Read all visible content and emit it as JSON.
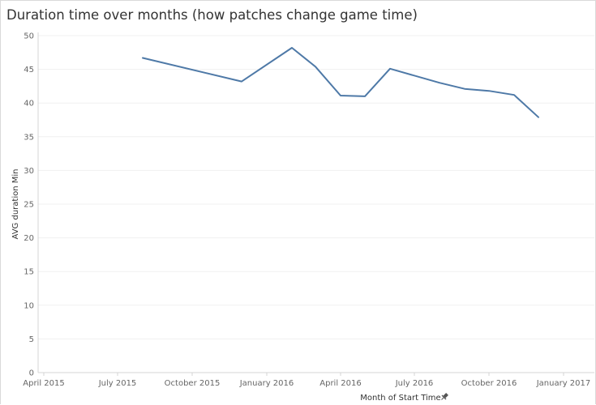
{
  "chart_data": {
    "type": "line",
    "title": "Duration time over months (how patches change game time)",
    "xlabel": "Month of Start Time",
    "ylabel": "AVG duration Min",
    "x_axis_marker": "pin-icon",
    "ylim": [
      0,
      50
    ],
    "yticks": [
      0,
      5,
      10,
      15,
      20,
      25,
      30,
      35,
      40,
      45,
      50
    ],
    "xlim": [
      "2015-03-25",
      "2017-02-08"
    ],
    "xticks": [
      {
        "date": "2015-04-01",
        "label": "April 2015"
      },
      {
        "date": "2015-07-01",
        "label": "July 2015"
      },
      {
        "date": "2015-10-01",
        "label": "October 2015"
      },
      {
        "date": "2016-01-01",
        "label": "January 2016"
      },
      {
        "date": "2016-04-01",
        "label": "April 2016"
      },
      {
        "date": "2016-07-01",
        "label": "July 2016"
      },
      {
        "date": "2016-10-01",
        "label": "October 2016"
      },
      {
        "date": "2017-01-01",
        "label": "January 2017"
      }
    ],
    "grid": true,
    "series": [
      {
        "color": "#4e79a7",
        "points": [
          {
            "x": "2015-08-01",
            "y": 46.7
          },
          {
            "x": "2015-12-01",
            "y": 43.2
          },
          {
            "x": "2016-02-01",
            "y": 48.2
          },
          {
            "x": "2016-03-01",
            "y": 45.4
          },
          {
            "x": "2016-04-01",
            "y": 41.1
          },
          {
            "x": "2016-05-01",
            "y": 41.0
          },
          {
            "x": "2016-06-01",
            "y": 45.1
          },
          {
            "x": "2016-08-01",
            "y": 43.0
          },
          {
            "x": "2016-09-01",
            "y": 42.1
          },
          {
            "x": "2016-10-01",
            "y": 41.8
          },
          {
            "x": "2016-11-01",
            "y": 41.2
          },
          {
            "x": "2016-12-01",
            "y": 37.9
          }
        ]
      }
    ]
  }
}
